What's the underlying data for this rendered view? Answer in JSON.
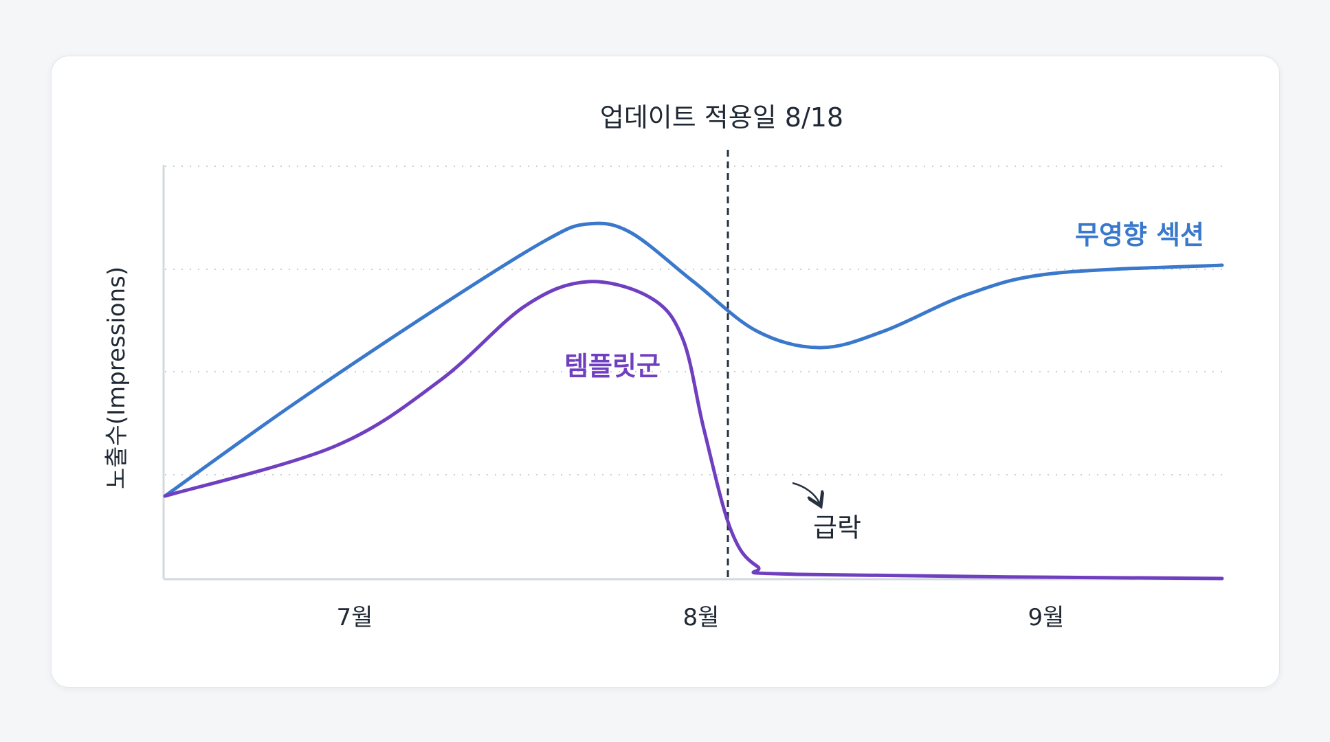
{
  "chart_data": {
    "type": "line",
    "title": "",
    "xlabel": "",
    "ylabel": "노출수(Impressions)",
    "x_ticks": [
      "7월",
      "8월",
      "9월"
    ],
    "grid": "horizontal dotted",
    "legend": "inline labels",
    "annotations": {
      "marker_label": "업데이트 적용일 8/18",
      "drop_label": "급락"
    },
    "series": [
      {
        "name": "무영향 섹션",
        "color": "#3a78cc",
        "points": [
          [
            0.0,
            0.2
          ],
          [
            0.12,
            0.42
          ],
          [
            0.26,
            0.66
          ],
          [
            0.36,
            0.82
          ],
          [
            0.4,
            0.86
          ],
          [
            0.44,
            0.84
          ],
          [
            0.5,
            0.72
          ],
          [
            0.56,
            0.6
          ],
          [
            0.62,
            0.56
          ],
          [
            0.68,
            0.6
          ],
          [
            0.76,
            0.69
          ],
          [
            0.84,
            0.74
          ],
          [
            1.0,
            0.76
          ]
        ]
      },
      {
        "name": "템플릿군",
        "color": "#6f3fc0",
        "points": [
          [
            0.0,
            0.2
          ],
          [
            0.16,
            0.32
          ],
          [
            0.26,
            0.48
          ],
          [
            0.34,
            0.66
          ],
          [
            0.4,
            0.72
          ],
          [
            0.46,
            0.68
          ],
          [
            0.49,
            0.58
          ],
          [
            0.51,
            0.36
          ],
          [
            0.535,
            0.12
          ],
          [
            0.56,
            0.03
          ],
          [
            0.6,
            0.01
          ],
          [
            1.0,
            0.0
          ]
        ]
      }
    ]
  }
}
